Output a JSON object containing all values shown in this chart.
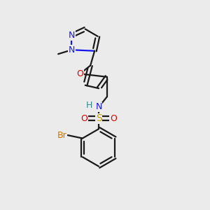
{
  "background_color": "#ebebeb",
  "figsize": [
    3.0,
    3.0
  ],
  "dpi": 100,
  "black": "#1a1a1a",
  "blue": "#1515ee",
  "red": "#dd0000",
  "orange": "#cc7700",
  "teal": "#2e8b8b",
  "yellow": "#c8a000",
  "lw": 1.6,
  "xlim": [
    0.0,
    1.0
  ],
  "ylim": [
    0.0,
    1.0
  ]
}
